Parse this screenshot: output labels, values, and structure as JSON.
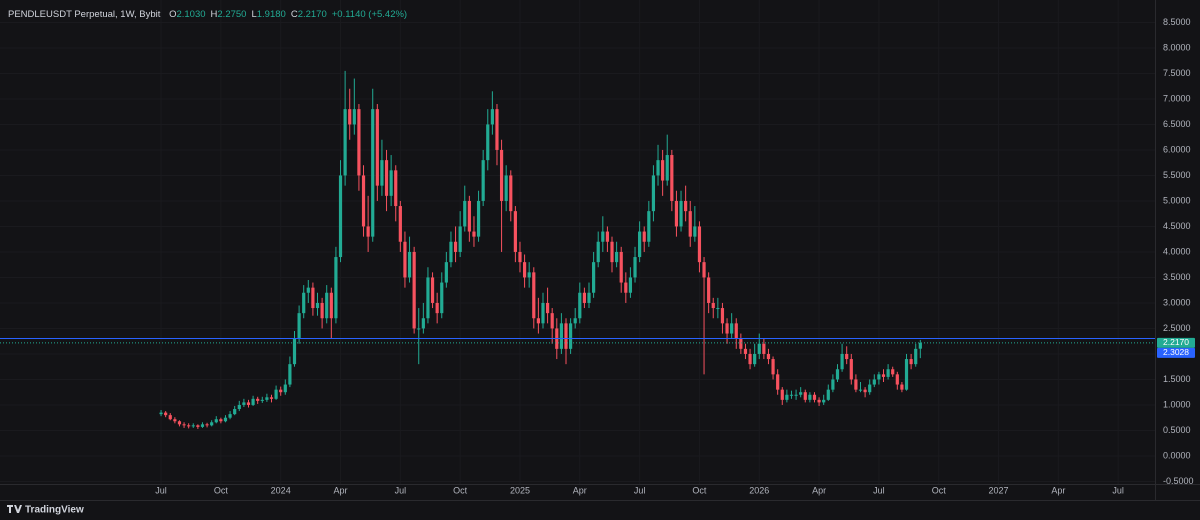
{
  "header": {
    "symbol": "PENDLEUSDT Perpetual, 1W, Bybit",
    "ohlc": [
      {
        "prefix": "O",
        "text": "2.1030"
      },
      {
        "prefix": "H",
        "text": "2.2750"
      },
      {
        "prefix": "L",
        "text": "1.9180"
      },
      {
        "prefix": "C",
        "text": "2.2170"
      }
    ],
    "change": "+0.1140 (+5.42%)"
  },
  "branding": "TradingView",
  "chart_data": {
    "type": "candlestick",
    "up_color": "#22ab94",
    "down_color": "#f7525f",
    "xlim": [
      -35,
      216
    ],
    "xticks": [
      {
        "value": 0,
        "label": "Jul"
      },
      {
        "value": 13,
        "label": "Oct"
      },
      {
        "value": 26,
        "label": "2024"
      },
      {
        "value": 39,
        "label": "Apr"
      },
      {
        "value": 52,
        "label": "Jul"
      },
      {
        "value": 65,
        "label": "Oct"
      },
      {
        "value": 78,
        "label": "2025"
      },
      {
        "value": 91,
        "label": "Apr"
      },
      {
        "value": 104,
        "label": "Jul"
      },
      {
        "value": 117,
        "label": "Oct"
      },
      {
        "value": 130,
        "label": "2026"
      },
      {
        "value": 143,
        "label": "Apr"
      },
      {
        "value": 156,
        "label": "Jul"
      },
      {
        "value": 169,
        "label": "Oct"
      },
      {
        "value": 182,
        "label": "2027"
      },
      {
        "value": 195,
        "label": "Apr"
      },
      {
        "value": 208,
        "label": "Jul"
      }
    ],
    "ylim": [
      -0.55,
      8.94
    ],
    "yticks": [
      {
        "value": 8.5,
        "label": "8.5000"
      },
      {
        "value": 8,
        "label": "8.0000"
      },
      {
        "value": 7.5,
        "label": "7.5000"
      },
      {
        "value": 7,
        "label": "7.0000"
      },
      {
        "value": 6.5,
        "label": "6.5000"
      },
      {
        "value": 6,
        "label": "6.0000"
      },
      {
        "value": 5.5,
        "label": "5.5000"
      },
      {
        "value": 5,
        "label": "5.0000"
      },
      {
        "value": 4.5,
        "label": "4.5000"
      },
      {
        "value": 4,
        "label": "4.0000"
      },
      {
        "value": 3.5,
        "label": "3.5000"
      },
      {
        "value": 3,
        "label": "3.0000"
      },
      {
        "value": 2.5,
        "label": "2.5000"
      },
      {
        "value": 2,
        "label": "2.0000"
      },
      {
        "value": 1.5,
        "label": "1.5000"
      },
      {
        "value": 1,
        "label": "1.0000"
      },
      {
        "value": 0.5,
        "label": "0.5000"
      },
      {
        "value": 0,
        "label": "0.0000"
      },
      {
        "value": -0.5,
        "label": "-0.5000"
      }
    ],
    "price_lines": [
      {
        "value": 2.217,
        "label": "2.2170",
        "color": "#22ab94"
      },
      {
        "value": 2.3028,
        "label": "2.3028",
        "color": "#2962ff"
      }
    ],
    "candles": [
      [
        0.82,
        0.9,
        0.78,
        0.85
      ],
      [
        0.85,
        0.88,
        0.76,
        0.8
      ],
      [
        0.8,
        0.84,
        0.7,
        0.72
      ],
      [
        0.72,
        0.76,
        0.64,
        0.68
      ],
      [
        0.68,
        0.7,
        0.58,
        0.62
      ],
      [
        0.62,
        0.66,
        0.55,
        0.6
      ],
      [
        0.6,
        0.64,
        0.54,
        0.58
      ],
      [
        0.58,
        0.64,
        0.55,
        0.6
      ],
      [
        0.6,
        0.62,
        0.53,
        0.57
      ],
      [
        0.57,
        0.66,
        0.55,
        0.62
      ],
      [
        0.62,
        0.65,
        0.56,
        0.6
      ],
      [
        0.6,
        0.7,
        0.58,
        0.66
      ],
      [
        0.66,
        0.78,
        0.64,
        0.72
      ],
      [
        0.72,
        0.75,
        0.64,
        0.68
      ],
      [
        0.68,
        0.8,
        0.66,
        0.75
      ],
      [
        0.75,
        0.88,
        0.72,
        0.82
      ],
      [
        0.82,
        0.98,
        0.8,
        0.92
      ],
      [
        0.92,
        1.08,
        0.88,
        1.0
      ],
      [
        1.0,
        1.12,
        0.96,
        1.05
      ],
      [
        1.05,
        1.1,
        0.95,
        1.0
      ],
      [
        1.0,
        1.18,
        0.98,
        1.12
      ],
      [
        1.12,
        1.16,
        1.02,
        1.08
      ],
      [
        1.08,
        1.16,
        1.04,
        1.1
      ],
      [
        1.1,
        1.22,
        1.06,
        1.15
      ],
      [
        1.15,
        1.2,
        1.05,
        1.12
      ],
      [
        1.12,
        1.38,
        1.1,
        1.3
      ],
      [
        1.3,
        1.36,
        1.18,
        1.25
      ],
      [
        1.25,
        1.5,
        1.2,
        1.4
      ],
      [
        1.4,
        1.95,
        1.35,
        1.8
      ],
      [
        1.8,
        2.45,
        1.75,
        2.3
      ],
      [
        2.3,
        2.95,
        2.2,
        2.8
      ],
      [
        2.8,
        3.35,
        2.7,
        3.2
      ],
      [
        3.2,
        3.45,
        3.0,
        3.3
      ],
      [
        3.3,
        3.4,
        2.75,
        2.9
      ],
      [
        2.9,
        3.2,
        2.75,
        3.0
      ],
      [
        3.0,
        3.1,
        2.5,
        2.7
      ],
      [
        2.7,
        3.35,
        2.6,
        3.2
      ],
      [
        3.2,
        3.3,
        2.3,
        2.7
      ],
      [
        2.7,
        4.1,
        2.6,
        3.9
      ],
      [
        3.9,
        5.8,
        3.8,
        5.5
      ],
      [
        5.5,
        7.55,
        5.3,
        6.8
      ],
      [
        6.8,
        7.2,
        6.2,
        6.5
      ],
      [
        6.5,
        7.4,
        6.3,
        6.8
      ],
      [
        6.8,
        6.9,
        5.2,
        5.5
      ],
      [
        5.5,
        5.7,
        4.3,
        4.5
      ],
      [
        4.5,
        5.1,
        4.0,
        4.3
      ],
      [
        4.3,
        7.2,
        4.2,
        6.8
      ],
      [
        6.8,
        6.9,
        5.0,
        5.3
      ],
      [
        5.3,
        6.2,
        5.1,
        5.8
      ],
      [
        5.8,
        6.0,
        4.8,
        5.1
      ],
      [
        5.1,
        5.9,
        4.9,
        5.6
      ],
      [
        5.6,
        5.7,
        4.6,
        4.9
      ],
      [
        4.9,
        5.0,
        4.0,
        4.2
      ],
      [
        4.2,
        4.4,
        3.3,
        3.5
      ],
      [
        3.5,
        4.3,
        3.4,
        4.0
      ],
      [
        4.0,
        4.1,
        2.4,
        2.5
      ],
      [
        2.5,
        2.9,
        1.8,
        2.5
      ],
      [
        2.5,
        3.0,
        2.4,
        2.7
      ],
      [
        2.7,
        3.7,
        2.6,
        3.5
      ],
      [
        3.5,
        3.6,
        2.9,
        3.0
      ],
      [
        3.0,
        3.2,
        2.6,
        2.8
      ],
      [
        2.8,
        3.6,
        2.7,
        3.4
      ],
      [
        3.4,
        4.0,
        3.3,
        3.8
      ],
      [
        3.8,
        4.4,
        3.7,
        4.2
      ],
      [
        4.2,
        4.5,
        3.8,
        4.0
      ],
      [
        4.0,
        4.8,
        3.9,
        4.5
      ],
      [
        4.5,
        5.3,
        4.4,
        5.0
      ],
      [
        5.0,
        5.1,
        4.2,
        4.4
      ],
      [
        4.4,
        4.7,
        4.1,
        4.3
      ],
      [
        4.3,
        5.2,
        4.2,
        5.0
      ],
      [
        5.0,
        6.0,
        4.9,
        5.8
      ],
      [
        5.8,
        6.8,
        5.6,
        6.5
      ],
      [
        6.5,
        7.15,
        6.3,
        6.8
      ],
      [
        6.8,
        6.9,
        5.7,
        6.0
      ],
      [
        6.0,
        6.2,
        4.0,
        5.0
      ],
      [
        5.0,
        5.7,
        4.8,
        5.5
      ],
      [
        5.5,
        5.6,
        4.6,
        4.8
      ],
      [
        4.8,
        4.9,
        3.8,
        4.0
      ],
      [
        4.0,
        4.2,
        3.6,
        3.8
      ],
      [
        3.8,
        3.95,
        3.3,
        3.5
      ],
      [
        3.5,
        3.8,
        3.3,
        3.6
      ],
      [
        3.6,
        3.7,
        2.5,
        2.7
      ],
      [
        2.7,
        3.1,
        2.4,
        2.6
      ],
      [
        2.6,
        3.2,
        2.5,
        3.0
      ],
      [
        3.0,
        3.3,
        2.6,
        2.8
      ],
      [
        2.8,
        2.9,
        2.2,
        2.5
      ],
      [
        2.5,
        2.7,
        1.9,
        2.1
      ],
      [
        2.1,
        2.8,
        2.0,
        2.6
      ],
      [
        2.6,
        2.7,
        1.8,
        2.1
      ],
      [
        2.1,
        2.7,
        2.0,
        2.6
      ],
      [
        2.6,
        2.9,
        2.5,
        2.7
      ],
      [
        2.7,
        3.4,
        2.6,
        3.2
      ],
      [
        3.2,
        3.3,
        2.9,
        3.0
      ],
      [
        3.0,
        3.4,
        2.9,
        3.2
      ],
      [
        3.2,
        4.0,
        3.1,
        3.8
      ],
      [
        3.8,
        4.4,
        3.7,
        4.2
      ],
      [
        4.2,
        4.7,
        4.0,
        4.4
      ],
      [
        4.4,
        4.5,
        4.0,
        4.2
      ],
      [
        4.2,
        4.3,
        3.6,
        3.8
      ],
      [
        3.8,
        4.2,
        3.7,
        4.0
      ],
      [
        4.0,
        4.1,
        3.2,
        3.4
      ],
      [
        3.4,
        3.6,
        3.0,
        3.2
      ],
      [
        3.2,
        3.7,
        3.1,
        3.5
      ],
      [
        3.5,
        4.1,
        3.4,
        3.9
      ],
      [
        3.9,
        4.6,
        3.8,
        4.4
      ],
      [
        4.4,
        4.5,
        4.0,
        4.2
      ],
      [
        4.2,
        5.0,
        4.1,
        4.8
      ],
      [
        4.8,
        5.7,
        4.6,
        5.5
      ],
      [
        5.5,
        6.1,
        5.3,
        5.8
      ],
      [
        5.8,
        6.0,
        5.1,
        5.4
      ],
      [
        5.4,
        6.3,
        5.3,
        5.9
      ],
      [
        5.9,
        6.0,
        4.8,
        5.0
      ],
      [
        5.0,
        5.2,
        4.3,
        4.5
      ],
      [
        4.5,
        5.2,
        4.4,
        5.0
      ],
      [
        5.0,
        5.3,
        4.6,
        4.8
      ],
      [
        4.8,
        5.0,
        4.1,
        4.3
      ],
      [
        4.3,
        4.9,
        4.2,
        4.5
      ],
      [
        4.5,
        4.6,
        3.6,
        3.8
      ],
      [
        3.8,
        3.9,
        1.6,
        3.5
      ],
      [
        3.5,
        3.6,
        2.8,
        3.0
      ],
      [
        3.0,
        3.1,
        2.7,
        2.9
      ],
      [
        2.9,
        3.1,
        2.7,
        2.9
      ],
      [
        2.9,
        3.0,
        2.4,
        2.6
      ],
      [
        2.6,
        2.7,
        2.2,
        2.4
      ],
      [
        2.4,
        2.8,
        2.3,
        2.6
      ],
      [
        2.6,
        2.7,
        2.1,
        2.3
      ],
      [
        2.3,
        2.4,
        2.0,
        2.1
      ],
      [
        2.1,
        2.2,
        1.9,
        2.0
      ],
      [
        2.0,
        2.1,
        1.7,
        1.8
      ],
      [
        1.8,
        2.2,
        1.75,
        2.0
      ],
      [
        2.0,
        2.4,
        1.9,
        2.2
      ],
      [
        2.2,
        2.3,
        1.9,
        2.0
      ],
      [
        2.0,
        2.1,
        1.8,
        1.9
      ],
      [
        1.9,
        1.95,
        1.5,
        1.6
      ],
      [
        1.6,
        1.7,
        1.2,
        1.3
      ],
      [
        1.3,
        1.35,
        1.0,
        1.1
      ],
      [
        1.1,
        1.3,
        1.05,
        1.2
      ],
      [
        1.2,
        1.28,
        1.12,
        1.2
      ],
      [
        1.2,
        1.3,
        1.1,
        1.2
      ],
      [
        1.2,
        1.35,
        1.15,
        1.25
      ],
      [
        1.25,
        1.3,
        1.05,
        1.1
      ],
      [
        1.1,
        1.25,
        1.05,
        1.2
      ],
      [
        1.2,
        1.25,
        1.05,
        1.1
      ],
      [
        1.1,
        1.15,
        0.98,
        1.05
      ],
      [
        1.05,
        1.2,
        1.0,
        1.1
      ],
      [
        1.1,
        1.4,
        1.08,
        1.3
      ],
      [
        1.3,
        1.6,
        1.25,
        1.5
      ],
      [
        1.5,
        1.8,
        1.45,
        1.7
      ],
      [
        1.7,
        2.2,
        1.65,
        2.0
      ],
      [
        2.0,
        2.15,
        1.8,
        1.9
      ],
      [
        1.9,
        2.0,
        1.4,
        1.5
      ],
      [
        1.5,
        1.6,
        1.25,
        1.3
      ],
      [
        1.3,
        1.45,
        1.25,
        1.3
      ],
      [
        1.3,
        1.35,
        1.15,
        1.25
      ],
      [
        1.25,
        1.5,
        1.2,
        1.4
      ],
      [
        1.4,
        1.6,
        1.35,
        1.5
      ],
      [
        1.5,
        1.65,
        1.4,
        1.6
      ],
      [
        1.6,
        1.7,
        1.45,
        1.55
      ],
      [
        1.55,
        1.8,
        1.5,
        1.7
      ],
      [
        1.7,
        1.75,
        1.55,
        1.6
      ],
      [
        1.6,
        1.65,
        1.3,
        1.4
      ],
      [
        1.4,
        1.45,
        1.25,
        1.3
      ],
      [
        1.3,
        2.0,
        1.28,
        1.9
      ],
      [
        1.9,
        2.0,
        1.7,
        1.8
      ],
      [
        1.8,
        2.2,
        1.75,
        2.1
      ],
      [
        2.103,
        2.275,
        1.918,
        2.217
      ]
    ]
  }
}
